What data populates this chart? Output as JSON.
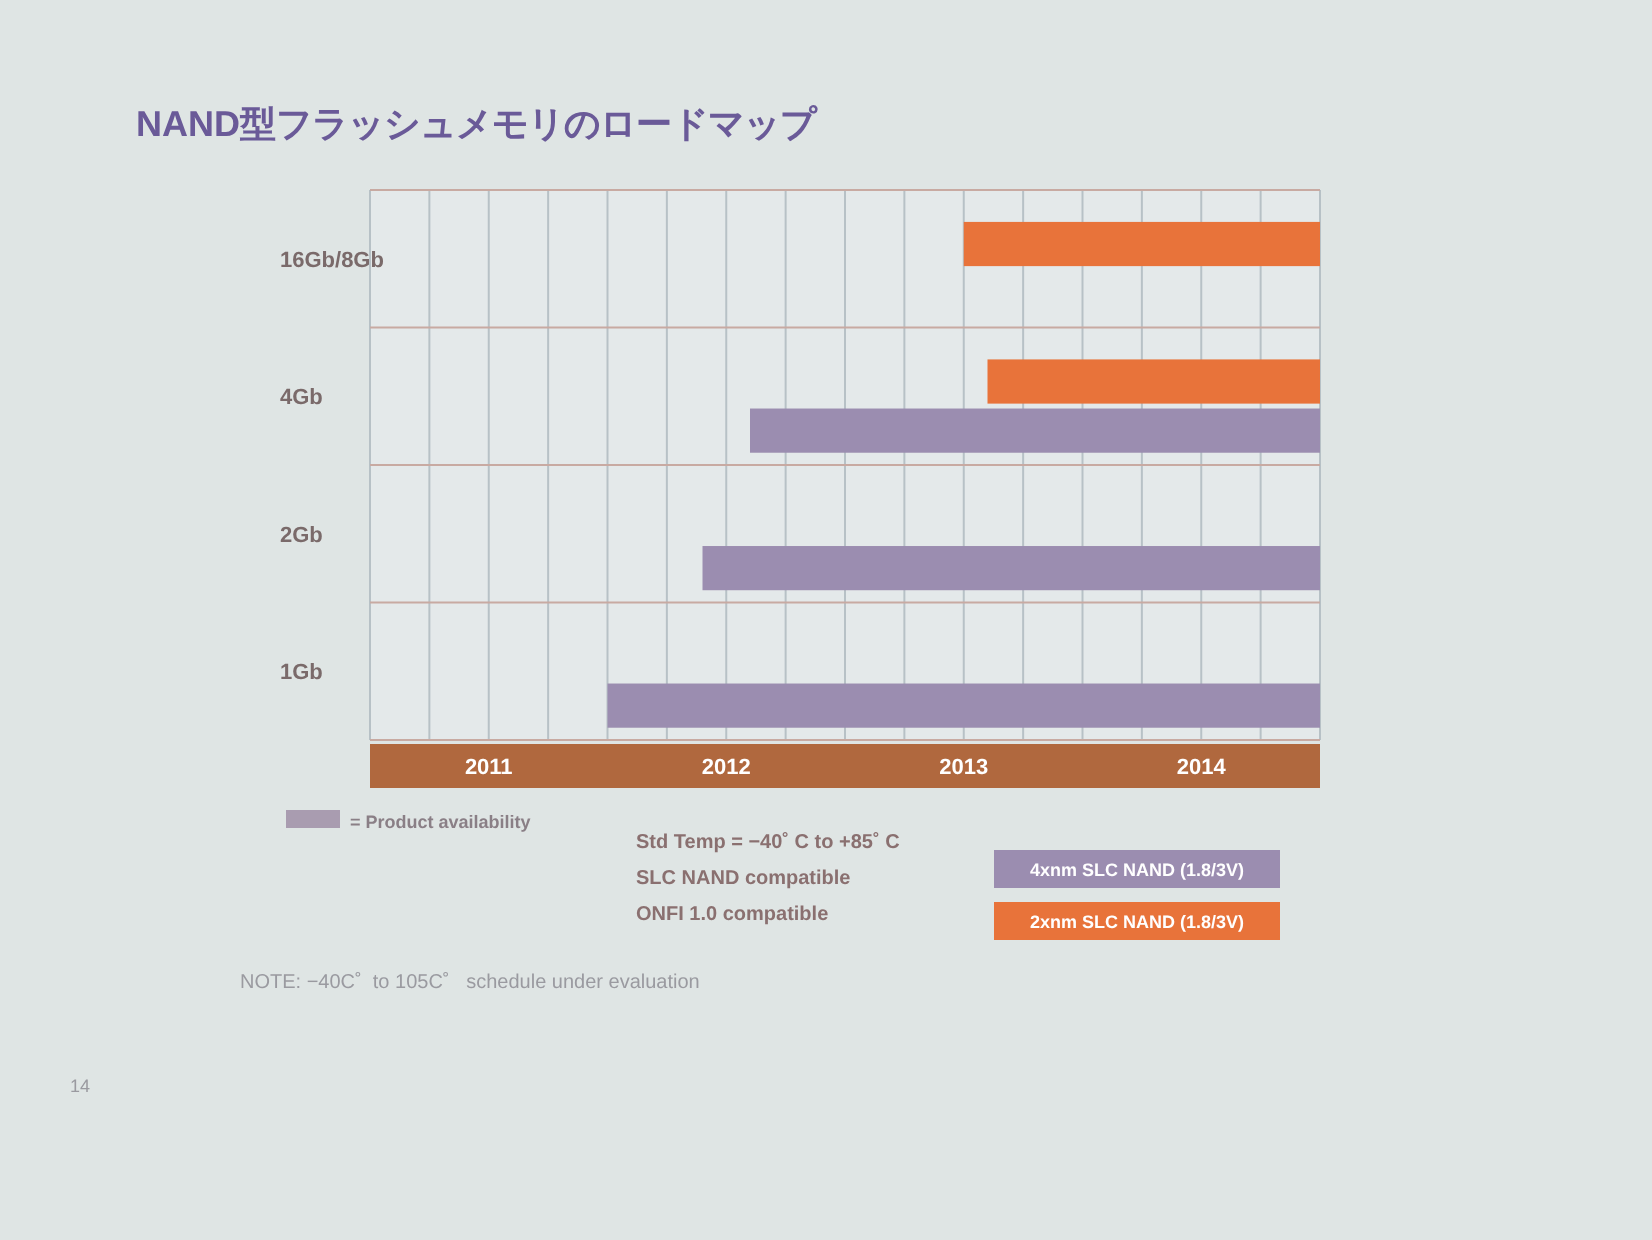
{
  "chart_data": {
    "type": "bar",
    "orientation": "horizontal",
    "title": "NAND型フラッシュメモリのロードマップ",
    "categories": [
      "16Gb/8Gb",
      "4Gb",
      "2Gb",
      "1Gb"
    ],
    "series": [
      {
        "name": "4xnm SLC NAND (1.8/3V)",
        "color": "#9b8db0",
        "base": [
          null,
          2012.6,
          2012.4,
          2012.0
        ],
        "values": [
          null,
          2.4,
          2.6,
          3.0
        ]
      },
      {
        "name": "2xnm SLC NAND (1.8/3V)",
        "color": "#e8733a",
        "base": [
          2013.5,
          2013.6,
          null,
          null
        ],
        "values": [
          1.5,
          1.4,
          null,
          null
        ]
      }
    ],
    "xlim": [
      2011,
      2015
    ],
    "xticks": [
      {
        "value": 2011,
        "label": null
      },
      {
        "value": 2011.25,
        "label": null
      },
      {
        "value": 2011.5,
        "label": "2011"
      },
      {
        "value": 2011.75,
        "label": null
      },
      {
        "value": 2012,
        "label": null
      },
      {
        "value": 2012.25,
        "label": null
      },
      {
        "value": 2012.5,
        "label": "2012"
      },
      {
        "value": 2012.75,
        "label": null
      },
      {
        "value": 2013,
        "label": null
      },
      {
        "value": 2013.25,
        "label": null
      },
      {
        "value": 2013.5,
        "label": "2013"
      },
      {
        "value": 2013.75,
        "label": null
      },
      {
        "value": 2014,
        "label": null
      },
      {
        "value": 2014.25,
        "label": null
      },
      {
        "value": 2014.5,
        "label": "2014"
      },
      {
        "value": 2014.75,
        "label": null
      },
      {
        "value": 2015,
        "label": null
      }
    ],
    "grid": true,
    "legend": "bottom right",
    "annotations": [
      "= Product availability",
      "Std Temp = −40˚ C to +85˚ C",
      "SLC NAND compatible",
      "ONFI 1.0 compatible",
      "NOTE: −40C˚  to 105C˚   schedule under evaluation",
      "14"
    ]
  }
}
